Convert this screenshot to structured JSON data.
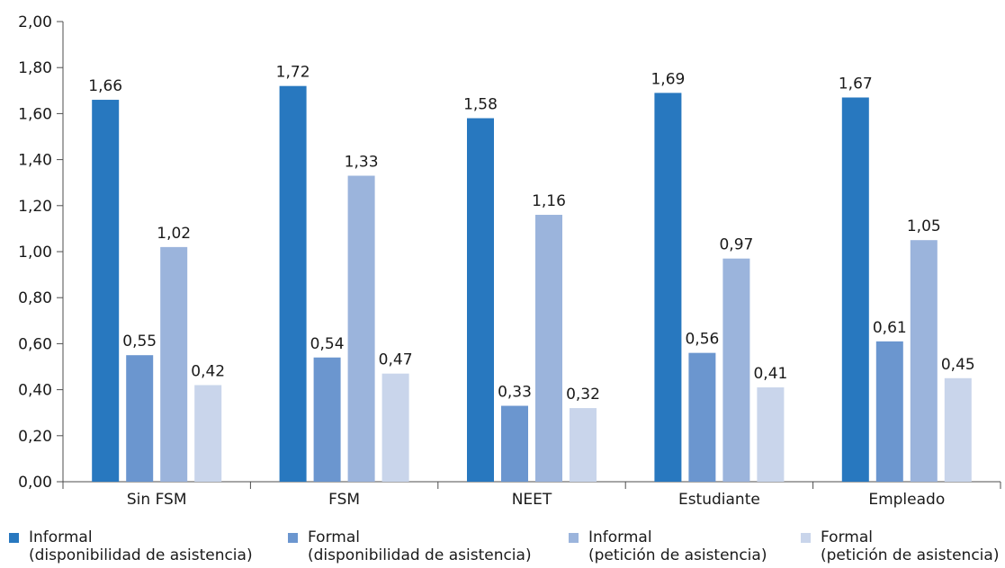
{
  "chart_data": {
    "type": "bar",
    "categories": [
      "Sin FSM",
      "FSM",
      "NEET",
      "Estudiante",
      "Empleado"
    ],
    "series": [
      {
        "name": "Informal (disponibilidad de asistencia)",
        "name_lines": [
          "Informal",
          "(disponibilidad de asistencia)"
        ],
        "color": "#2878bf",
        "values": [
          1.66,
          1.72,
          1.58,
          1.69,
          1.67
        ],
        "labels": [
          "1,66",
          "1,72",
          "1,58",
          "1,69",
          "1,67"
        ]
      },
      {
        "name": "Formal (disponibilidad de asistencia)",
        "name_lines": [
          "Formal",
          "(disponibilidad de asistencia)"
        ],
        "color": "#6b96cf",
        "values": [
          0.55,
          0.54,
          0.33,
          0.56,
          0.61
        ],
        "labels": [
          "0,55",
          "0,54",
          "0,33",
          "0,56",
          "0,61"
        ]
      },
      {
        "name": "Informal (petición de asistencia)",
        "name_lines": [
          "Informal",
          "(petición de asistencia)"
        ],
        "color": "#9bb4dc",
        "values": [
          1.02,
          1.33,
          1.16,
          0.97,
          1.05
        ],
        "labels": [
          "1,02",
          "1,33",
          "1,16",
          "0,97",
          "1,05"
        ]
      },
      {
        "name": "Formal (petición de asistencia)",
        "name_lines": [
          "Formal",
          "(petición de asistencia)"
        ],
        "color": "#c9d5eb",
        "values": [
          0.42,
          0.47,
          0.32,
          0.41,
          0.45
        ],
        "labels": [
          "0,42",
          "0,47",
          "0,32",
          "0,41",
          "0,45"
        ]
      }
    ],
    "yticks": [
      0,
      0.2,
      0.4,
      0.6,
      0.8,
      1.0,
      1.2,
      1.4,
      1.6,
      1.8,
      2.0
    ],
    "ytick_labels": [
      "0,00",
      "0,20",
      "0,40",
      "0,60",
      "0,80",
      "1,00",
      "1,20",
      "1,40",
      "1,60",
      "1,80",
      "2,00"
    ],
    "ylim": [
      0,
      2.0
    ],
    "grid": false,
    "legend_position": "bottom",
    "title": "",
    "xlabel": "",
    "ylabel": ""
  }
}
